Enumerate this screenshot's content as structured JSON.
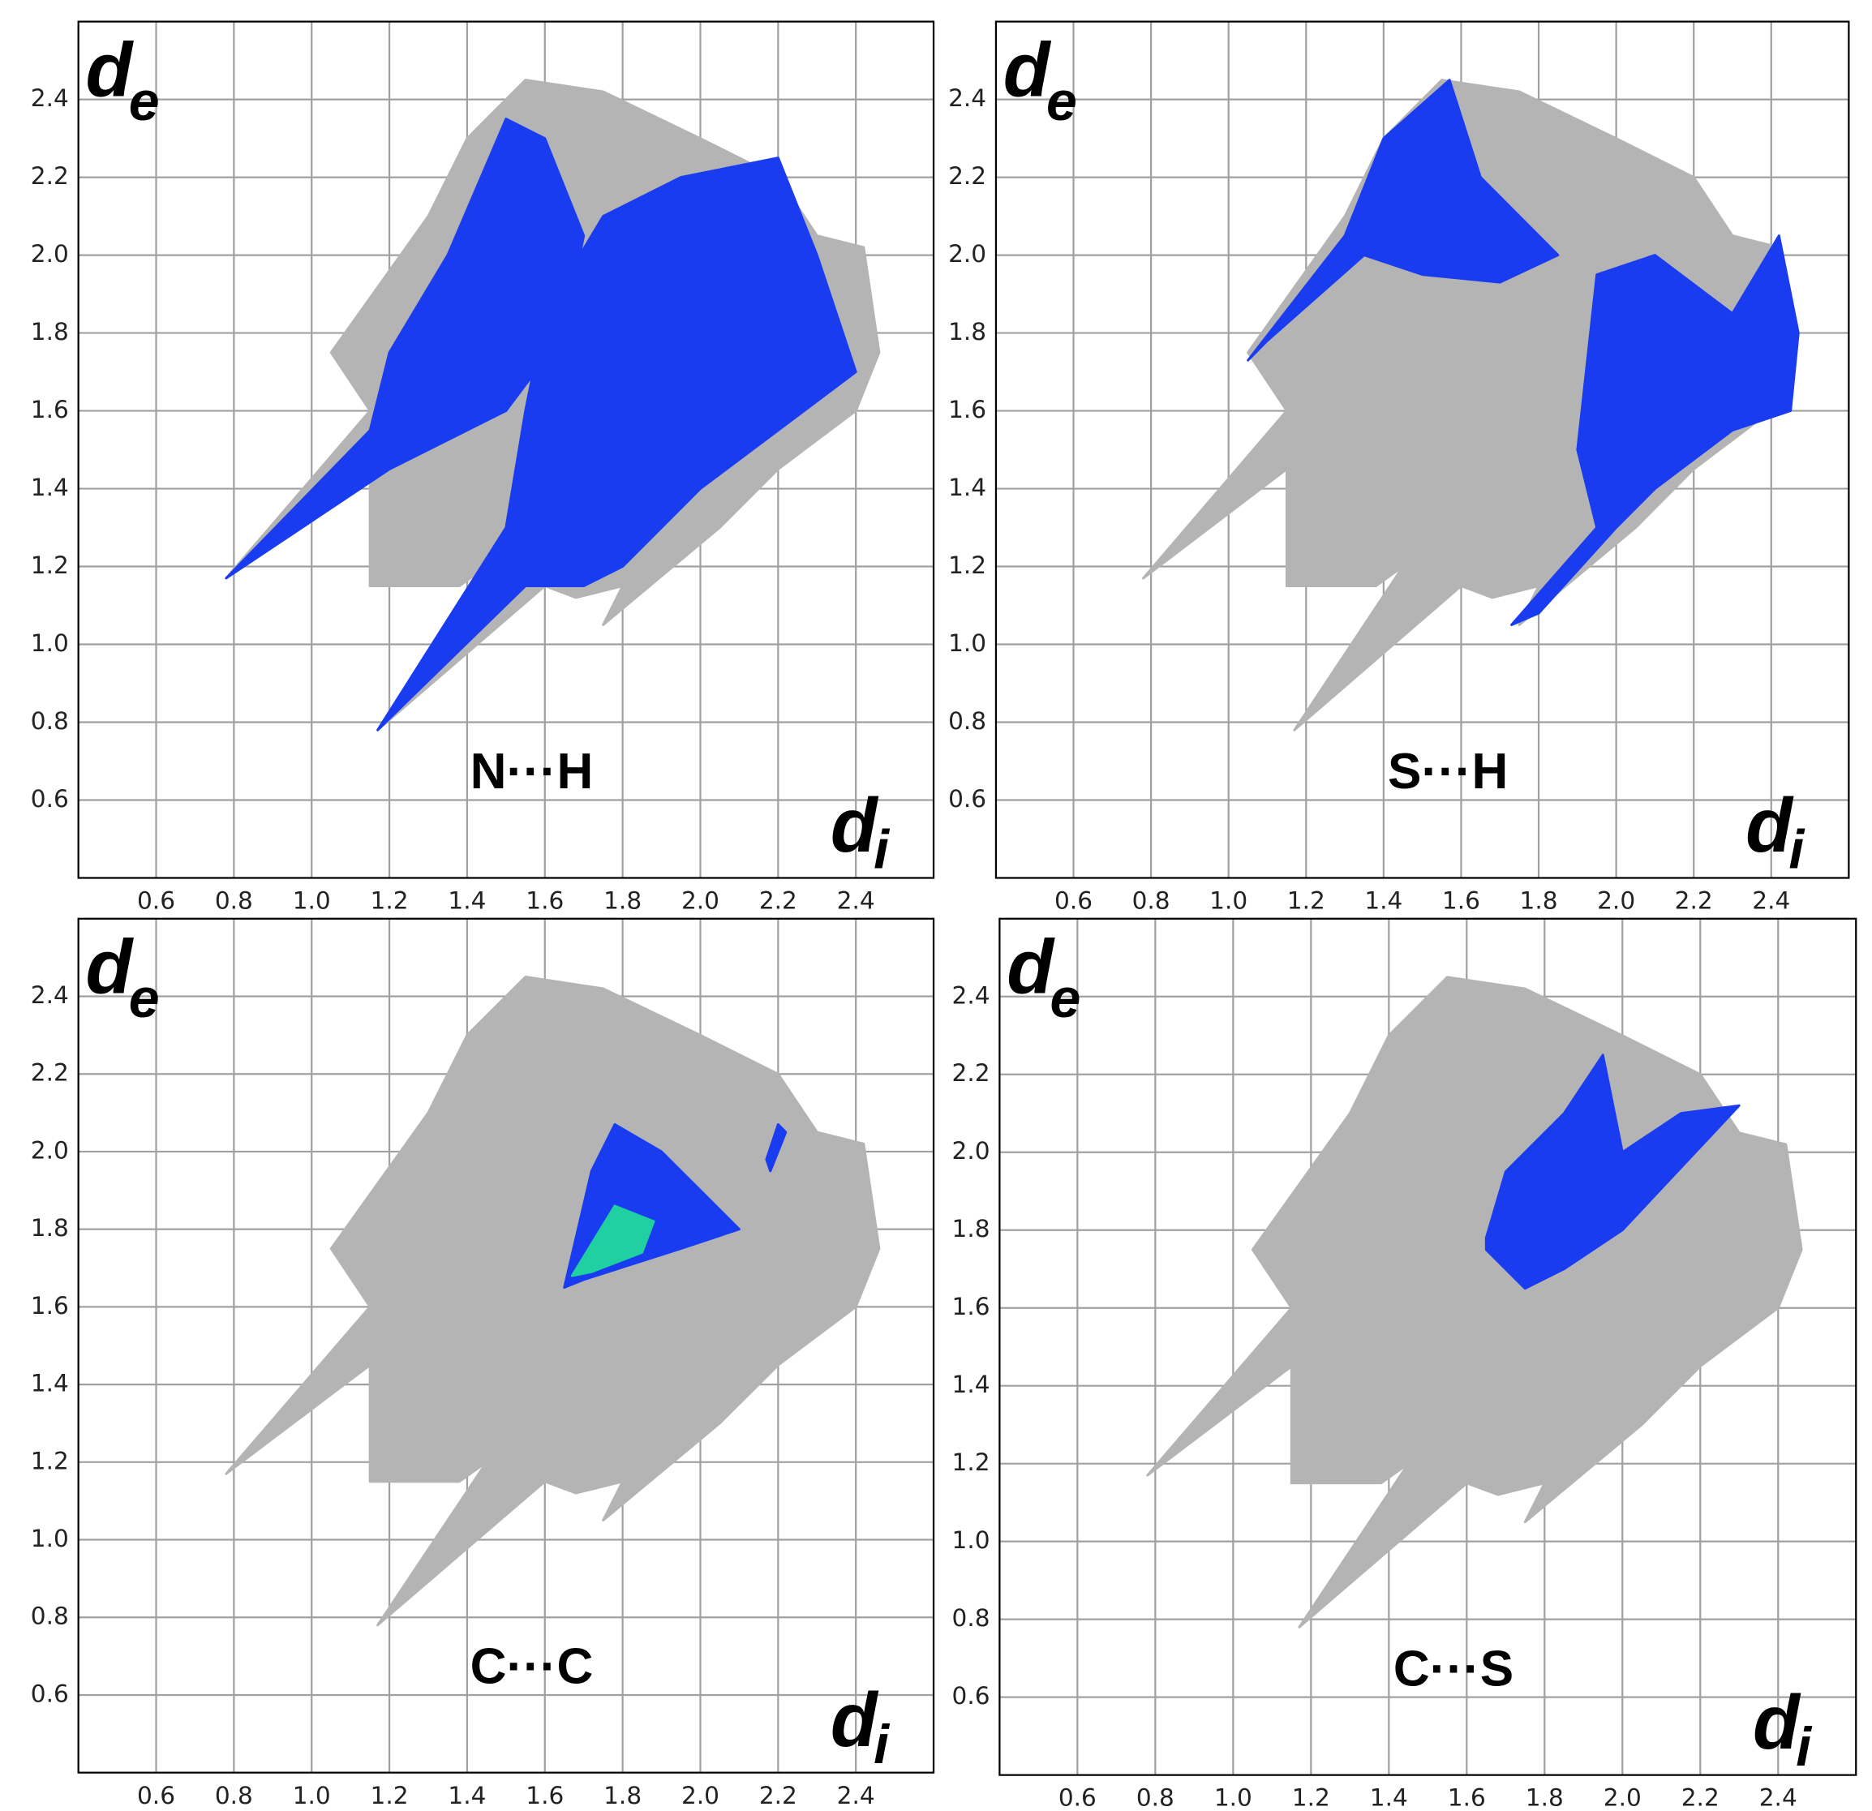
{
  "chart_data": [
    {
      "type": "fingerprint",
      "label": "N···H",
      "xlabel": [
        "d",
        "i"
      ],
      "ylabel": [
        "d",
        "e"
      ],
      "grid": true,
      "xlim": [
        0.4,
        2.6
      ],
      "ylim": [
        0.4,
        2.6
      ],
      "xticks": [
        0.6,
        0.8,
        {
          "value": 1,
          "label": "1.0"
        },
        1.2,
        1.4,
        1.6,
        1.8,
        {
          "value": 2,
          "label": "2.0"
        },
        2.2,
        2.4
      ],
      "yticks": [
        0.6,
        0.8,
        {
          "value": 1,
          "label": "1.0"
        },
        1.2,
        1.4,
        1.6,
        1.8,
        {
          "value": 2,
          "label": "2.0"
        },
        2.2,
        2.4
      ],
      "regions": [
        {
          "color": "#b4b4b4",
          "x": [
            0.78,
            1.15,
            1.05,
            1.3,
            1.4,
            1.55,
            1.75,
            2.0,
            2.2,
            2.3,
            2.42,
            2.46,
            2.4,
            2.2,
            2.05,
            1.75,
            1.8,
            1.68,
            1.6,
            1.17,
            1.45,
            1.38,
            1.15,
            1.15
          ],
          "y": [
            1.17,
            1.6,
            1.75,
            2.1,
            2.3,
            2.45,
            2.42,
            2.3,
            2.2,
            2.05,
            2.02,
            1.75,
            1.6,
            1.45,
            1.3,
            1.05,
            1.15,
            1.12,
            1.15,
            0.78,
            1.2,
            1.15,
            1.15,
            1.45
          ]
        },
        {
          "color": "#1a3cf0",
          "x": [
            0.78,
            1.15,
            1.2,
            1.35,
            1.5,
            1.6,
            1.7,
            1.65,
            1.5,
            1.2
          ],
          "y": [
            1.17,
            1.55,
            1.75,
            2.0,
            2.35,
            2.3,
            2.05,
            1.8,
            1.6,
            1.45
          ]
        },
        {
          "color": "#1a3cf0",
          "x": [
            1.17,
            1.5,
            1.55,
            1.6,
            1.75,
            1.95,
            2.2,
            2.3,
            2.4,
            2.2,
            2.0,
            1.8,
            1.7,
            1.55
          ],
          "y": [
            0.78,
            1.3,
            1.6,
            1.85,
            2.1,
            2.2,
            2.25,
            2.0,
            1.7,
            1.55,
            1.4,
            1.2,
            1.15,
            1.15
          ]
        }
      ]
    },
    {
      "type": "fingerprint",
      "label": "S···H",
      "xlabel": [
        "d",
        "i"
      ],
      "ylabel": [
        "d",
        "e"
      ],
      "grid": true,
      "xlim": [
        0.4,
        2.6
      ],
      "ylim": [
        0.4,
        2.6
      ],
      "xticks": [
        0.6,
        0.8,
        {
          "value": 1,
          "label": "1.0"
        },
        1.2,
        1.4,
        1.6,
        1.8,
        {
          "value": 2,
          "label": "2.0"
        },
        2.2,
        2.4
      ],
      "yticks": [
        0.6,
        0.8,
        {
          "value": 1,
          "label": "1.0"
        },
        1.2,
        1.4,
        1.6,
        1.8,
        {
          "value": 2,
          "label": "2.0"
        },
        2.2,
        2.4
      ],
      "regions": [
        {
          "color": "#b4b4b4",
          "x": [
            0.78,
            1.15,
            1.05,
            1.3,
            1.4,
            1.55,
            1.75,
            2.0,
            2.2,
            2.3,
            2.42,
            2.46,
            2.4,
            2.2,
            2.05,
            1.75,
            1.8,
            1.68,
            1.6,
            1.17,
            1.45,
            1.38,
            1.15,
            1.15
          ],
          "y": [
            1.17,
            1.6,
            1.75,
            2.1,
            2.3,
            2.45,
            2.42,
            2.3,
            2.2,
            2.05,
            2.02,
            1.75,
            1.6,
            1.45,
            1.3,
            1.05,
            1.15,
            1.12,
            1.15,
            0.78,
            1.2,
            1.15,
            1.15,
            1.45
          ]
        },
        {
          "color": "#1a3cf0",
          "x": [
            1.05,
            1.3,
            1.4,
            1.57,
            1.65,
            1.8,
            1.85,
            1.7,
            1.5,
            1.35,
            1.1
          ],
          "y": [
            1.73,
            2.05,
            2.3,
            2.45,
            2.2,
            2.05,
            2.0,
            1.93,
            1.95,
            2.0,
            1.78
          ]
        },
        {
          "color": "#1a3cf0",
          "x": [
            1.73,
            1.95,
            1.9,
            1.95,
            2.1,
            2.3,
            2.42,
            2.47,
            2.45,
            2.3,
            2.1,
            2.0,
            1.8
          ],
          "y": [
            1.05,
            1.3,
            1.5,
            1.95,
            2.0,
            1.85,
            2.05,
            1.8,
            1.6,
            1.55,
            1.4,
            1.3,
            1.08
          ]
        }
      ]
    },
    {
      "type": "fingerprint",
      "label": "C···C",
      "xlabel": [
        "d",
        "i"
      ],
      "ylabel": [
        "d",
        "e"
      ],
      "grid": true,
      "xlim": [
        0.4,
        2.6
      ],
      "ylim": [
        0.4,
        2.6
      ],
      "xticks": [
        0.6,
        0.8,
        {
          "value": 1,
          "label": "1.0"
        },
        1.2,
        1.4,
        1.6,
        1.8,
        {
          "value": 2,
          "label": "2.0"
        },
        2.2,
        2.4
      ],
      "yticks": [
        0.6,
        0.8,
        {
          "value": 1,
          "label": "1.0"
        },
        1.2,
        1.4,
        1.6,
        1.8,
        {
          "value": 2,
          "label": "2.0"
        },
        2.2,
        2.4
      ],
      "regions": [
        {
          "color": "#b4b4b4",
          "x": [
            0.78,
            1.15,
            1.05,
            1.3,
            1.4,
            1.55,
            1.75,
            2.0,
            2.2,
            2.3,
            2.42,
            2.46,
            2.4,
            2.2,
            2.05,
            1.75,
            1.8,
            1.68,
            1.6,
            1.17,
            1.45,
            1.38,
            1.15,
            1.15
          ],
          "y": [
            1.17,
            1.6,
            1.75,
            2.1,
            2.3,
            2.45,
            2.42,
            2.3,
            2.2,
            2.05,
            2.02,
            1.75,
            1.6,
            1.45,
            1.3,
            1.05,
            1.15,
            1.12,
            1.15,
            0.78,
            1.2,
            1.15,
            1.15,
            1.45
          ]
        },
        {
          "color": "#1a3cf0",
          "x": [
            1.65,
            1.72,
            1.78,
            1.9,
            2.1,
            1.95,
            1.7
          ],
          "y": [
            1.65,
            1.95,
            2.07,
            2.0,
            1.8,
            1.75,
            1.67
          ]
        },
        {
          "color": "#1a3cf0",
          "x": [
            2.18,
            2.22,
            2.2,
            2.17
          ],
          "y": [
            1.95,
            2.05,
            2.07,
            1.98
          ]
        },
        {
          "color": "#20d0a0",
          "x": [
            1.67,
            1.78,
            1.88,
            1.85,
            1.72
          ],
          "y": [
            1.68,
            1.86,
            1.82,
            1.74,
            1.69
          ]
        }
      ]
    },
    {
      "type": "fingerprint",
      "label": "C···S",
      "xlabel": [
        "d",
        "i"
      ],
      "ylabel": [
        "d",
        "e"
      ],
      "grid": true,
      "xlim": [
        0.4,
        2.6
      ],
      "ylim": [
        0.4,
        2.6
      ],
      "xticks": [
        0.6,
        0.8,
        {
          "value": 1,
          "label": "1.0"
        },
        1.2,
        1.4,
        1.6,
        1.8,
        {
          "value": 2,
          "label": "2.0"
        },
        2.2,
        2.4
      ],
      "yticks": [
        0.6,
        0.8,
        {
          "value": 1,
          "label": "1.0"
        },
        1.2,
        1.4,
        1.6,
        1.8,
        {
          "value": 2,
          "label": "2.0"
        },
        2.2,
        2.4
      ],
      "regions": [
        {
          "color": "#b4b4b4",
          "x": [
            0.78,
            1.15,
            1.05,
            1.3,
            1.4,
            1.55,
            1.75,
            2.0,
            2.2,
            2.3,
            2.42,
            2.46,
            2.4,
            2.2,
            2.05,
            1.75,
            1.8,
            1.68,
            1.6,
            1.17,
            1.45,
            1.38,
            1.15,
            1.15
          ],
          "y": [
            1.17,
            1.6,
            1.75,
            2.1,
            2.3,
            2.45,
            2.42,
            2.3,
            2.2,
            2.05,
            2.02,
            1.75,
            1.6,
            1.45,
            1.3,
            1.05,
            1.15,
            1.12,
            1.15,
            0.78,
            1.2,
            1.15,
            1.15,
            1.45
          ]
        },
        {
          "color": "#1a3cf0",
          "x": [
            1.65,
            1.7,
            1.85,
            1.95,
            2.0,
            2.15,
            2.3,
            2.0,
            1.85,
            1.75,
            1.65
          ],
          "y": [
            1.78,
            1.95,
            2.1,
            2.25,
            2.0,
            2.1,
            2.12,
            1.8,
            1.7,
            1.65,
            1.75
          ]
        }
      ]
    }
  ]
}
